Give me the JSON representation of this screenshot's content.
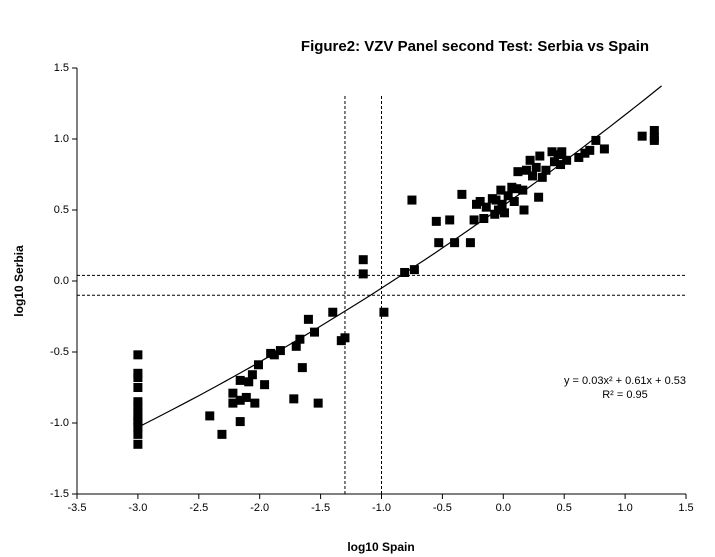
{
  "chart_data": {
    "type": "scatter",
    "title": "Figure2: VZV Panel second Test: Serbia vs Spain",
    "x_label": "log10 Spain",
    "y_label": "log10 Serbia",
    "xlim": [
      -3.5,
      1.5
    ],
    "ylim": [
      -1.5,
      1.5
    ],
    "xticks": [
      -3.5,
      {
        "value": -3.0,
        "label": "-3.0"
      },
      -2.5,
      {
        "value": -2.0,
        "label": "-2.0"
      },
      -1.5,
      {
        "value": -1.0,
        "label": "-1.0"
      },
      -0.5,
      {
        "value": 0.0,
        "label": "0.0"
      },
      0.5,
      {
        "value": 1.0,
        "label": "1.0"
      },
      1.5
    ],
    "yticks": [
      -1.5,
      {
        "value": -1.0,
        "label": "-1.0"
      },
      -0.5,
      {
        "value": 0.0,
        "label": "0.0"
      },
      0.5,
      {
        "value": 1.0,
        "label": "1.0"
      },
      1.5
    ],
    "color": "#000000",
    "vlines": [
      -1.3,
      -1.0
    ],
    "hlines": [
      0.04,
      -0.1
    ],
    "trendline": {
      "coefficients": [
        0.03,
        0.61,
        0.53
      ],
      "xrange": [
        -3.0,
        1.3
      ]
    },
    "annotations": [
      "y = 0.03x² + 0.61x + 0.53",
      "R² = 0.95"
    ],
    "x": [
      -3,
      -3,
      -3,
      -3,
      -3,
      -3,
      -3,
      -3,
      -3,
      -3,
      -3,
      -3,
      -3,
      -2.41,
      -2.31,
      -2.22,
      -2.22,
      -2.16,
      -2.16,
      -2.16,
      -2.11,
      -2.09,
      -2.06,
      -2.04,
      -2.01,
      -1.96,
      -1.91,
      -1.88,
      -1.83,
      -1.72,
      -1.7,
      -1.67,
      -1.65,
      -1.6,
      -1.55,
      -1.52,
      -1.4,
      -1.33,
      -1.3,
      -1.15,
      -1.15,
      -0.98,
      -0.81,
      -0.73,
      -0.75,
      -0.55,
      -0.53,
      -0.44,
      -0.4,
      -0.34,
      -0.27,
      -0.24,
      -0.22,
      -0.19,
      -0.16,
      -0.14,
      -0.09,
      -0.07,
      -0.06,
      -0.04,
      -0.02,
      -0.01,
      0.01,
      0.04,
      0.07,
      0.09,
      0.11,
      0.12,
      0.16,
      0.17,
      0.19,
      0.22,
      0.24,
      0.27,
      0.29,
      0.3,
      0.32,
      0.35,
      0.4,
      0.42,
      0.45,
      0.47,
      0.48,
      0.52,
      0.62,
      0.67,
      0.71,
      0.76,
      0.83,
      1.14,
      1.24,
      1.24,
      1.24
    ],
    "values": [
      -0.52,
      -0.65,
      -0.68,
      -0.75,
      -0.85,
      -0.88,
      -0.92,
      -0.95,
      -0.98,
      -1.0,
      -1.03,
      -1.08,
      -1.15,
      -0.95,
      -1.08,
      -0.79,
      -0.86,
      -0.7,
      -0.84,
      -0.99,
      -0.82,
      -0.71,
      -0.66,
      -0.86,
      -0.59,
      -0.73,
      -0.51,
      -0.52,
      -0.49,
      -0.83,
      -0.46,
      -0.41,
      -0.61,
      -0.27,
      -0.36,
      -0.86,
      -0.22,
      -0.42,
      -0.4,
      0.15,
      0.05,
      -0.22,
      0.06,
      0.08,
      0.57,
      0.42,
      0.27,
      0.43,
      0.27,
      0.61,
      0.27,
      0.43,
      0.54,
      0.56,
      0.44,
      0.52,
      0.58,
      0.47,
      0.57,
      0.5,
      0.64,
      0.54,
      0.48,
      0.6,
      0.66,
      0.56,
      0.65,
      0.77,
      0.64,
      0.5,
      0.78,
      0.85,
      0.74,
      0.8,
      0.59,
      0.88,
      0.73,
      0.78,
      0.91,
      0.84,
      0.89,
      0.82,
      0.91,
      0.85,
      0.87,
      0.9,
      0.92,
      0.99,
      0.93,
      1.02,
      1.01,
      1.06,
      0.99
    ]
  }
}
